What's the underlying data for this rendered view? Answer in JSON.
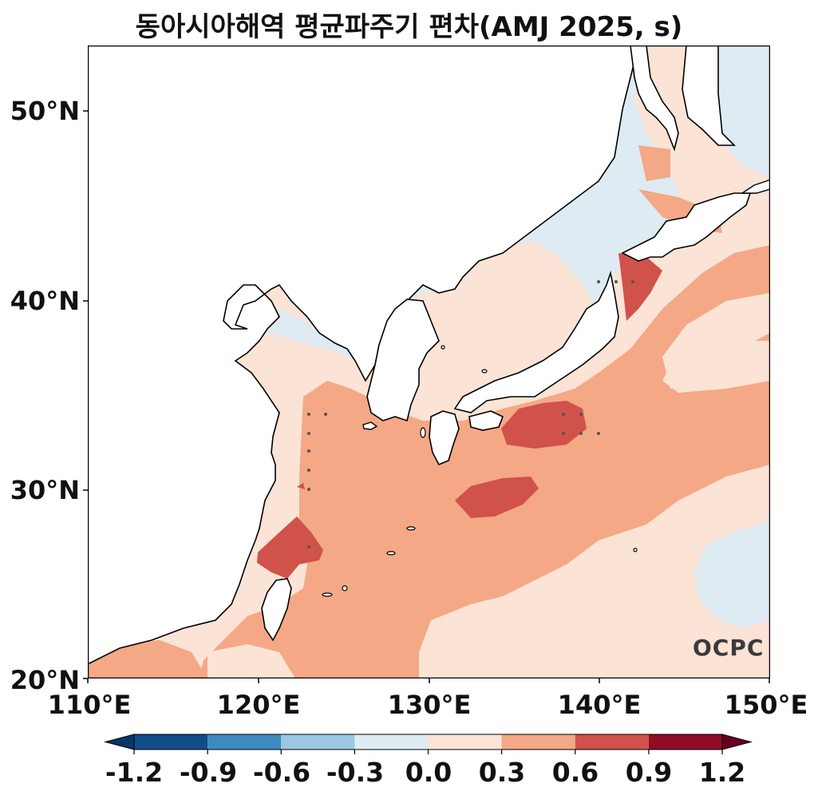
{
  "title": "동아시아해역 평균파주기 편차(AMJ 2025, s)",
  "logo_text": "OCPC",
  "axes": {
    "lon_ticks": [
      {
        "value": 110,
        "label": "110°E"
      },
      {
        "value": 120,
        "label": "120°E"
      },
      {
        "value": 130,
        "label": "130°E"
      },
      {
        "value": 140,
        "label": "140°E"
      },
      {
        "value": 150,
        "label": "150°E"
      }
    ],
    "lat_ticks": [
      {
        "value": 20,
        "label": "20°N"
      },
      {
        "value": 30,
        "label": "30°N"
      },
      {
        "value": 40,
        "label": "40°N"
      },
      {
        "value": 50,
        "label": "50°N"
      }
    ],
    "lon_range": [
      110,
      150
    ],
    "lat_range": [
      20,
      53.5
    ]
  },
  "colorbar": {
    "levels": [
      -1.2,
      -0.9,
      -0.6,
      -0.3,
      0.0,
      0.3,
      0.6,
      0.9,
      1.2
    ],
    "labels": [
      "-1.2",
      "-0.9",
      "-0.6",
      "-0.3",
      "0.0",
      "0.3",
      "0.6",
      "0.9",
      "1.2"
    ],
    "colors": [
      "#0f4c8a",
      "#3b8bc2",
      "#9ac8e0",
      "#deebf3",
      "#fbe3d6",
      "#f4a886",
      "#d0524a",
      "#8f0c27"
    ],
    "under_color": "#0a3767",
    "over_color": "#67001f",
    "extend": "both"
  },
  "map_colors": {
    "land": "#ffffff",
    "coast": "#000000",
    "anom_neg_0.3_0": "#deebf3",
    "anom_0_0.3": "#fbe3d6",
    "anom_0.3_0.6": "#f4a886",
    "anom_0.6_0.9": "#d0524a"
  }
}
